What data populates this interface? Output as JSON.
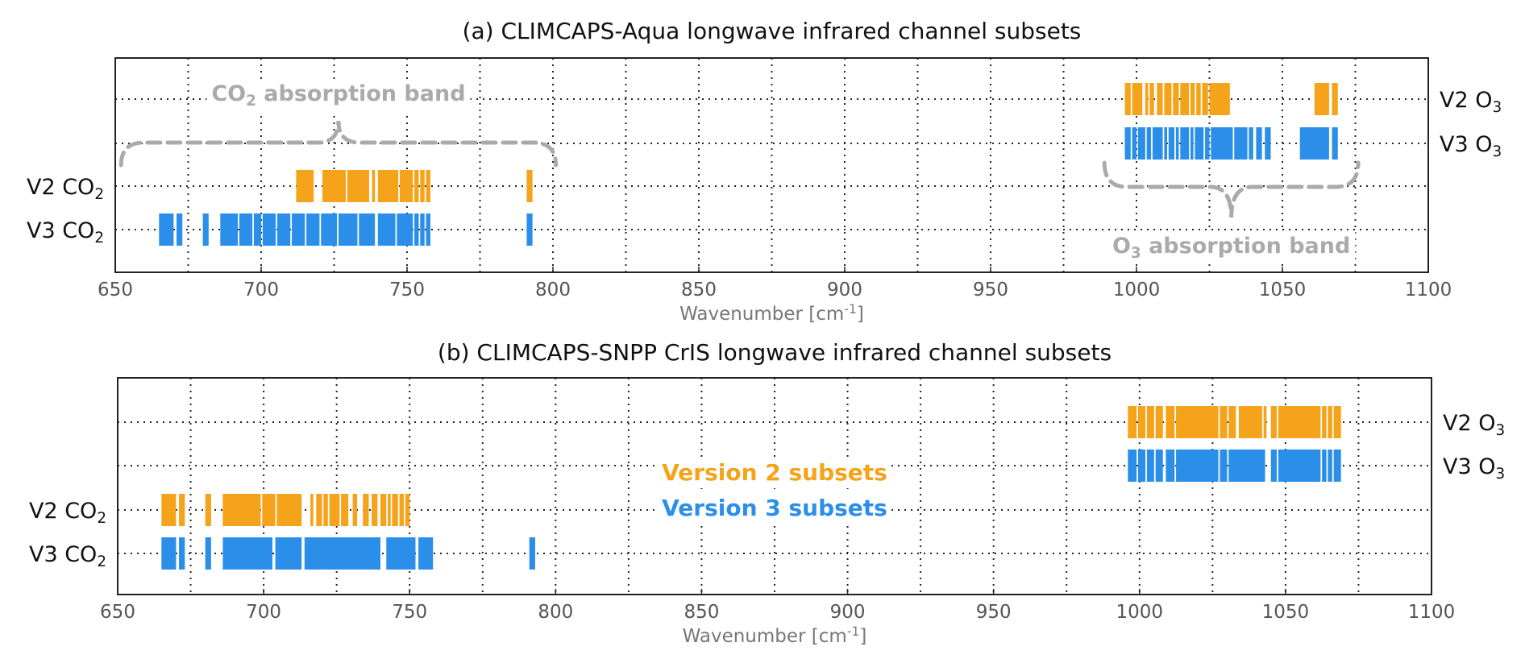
{
  "colors": {
    "v2": "#f5a31a",
    "v3": "#2b8fea",
    "band": "#aaaaaa",
    "grid": "#222222"
  },
  "chart_data": [
    {
      "type": "bar",
      "title": "(a) CLIMCAPS-Aqua longwave infrared channel subsets",
      "xlabel": "Wavenumber [cm",
      "xlabel_sup": "-1",
      "xlabel_end": "]",
      "xlim": [
        650,
        1100
      ],
      "xticks": [
        650,
        700,
        750,
        800,
        850,
        900,
        950,
        1000,
        1050,
        1100
      ],
      "grid": true,
      "rows": [
        {
          "id": "v2o3",
          "label": "V2 O",
          "sub": "3",
          "side": "right",
          "color": "#f5a31a",
          "segments": [
            [
              996,
              998
            ],
            [
              998.5,
              1002
            ],
            [
              1003,
              1004
            ],
            [
              1004.5,
              1006
            ],
            [
              1007,
              1009
            ],
            [
              1009.5,
              1012
            ],
            [
              1012.5,
              1014.5
            ],
            [
              1015,
              1018
            ],
            [
              1018.5,
              1020
            ],
            [
              1020.5,
              1022
            ],
            [
              1022.5,
              1024.5
            ],
            [
              1025,
              1032
            ],
            [
              1061,
              1066
            ],
            [
              1067,
              1069
            ]
          ]
        },
        {
          "id": "v3o3",
          "label": "V3 O",
          "sub": "3",
          "side": "right",
          "color": "#2b8fea",
          "segments": [
            [
              996,
              998
            ],
            [
              998.5,
              1000
            ],
            [
              1000.5,
              1003
            ],
            [
              1003.5,
              1005
            ],
            [
              1005.5,
              1009
            ],
            [
              1009.5,
              1010.5
            ],
            [
              1011,
              1013
            ],
            [
              1013.5,
              1014.5
            ],
            [
              1015,
              1018
            ],
            [
              1018.5,
              1019.5
            ],
            [
              1020,
              1023
            ],
            [
              1023.5,
              1025
            ],
            [
              1025.5,
              1033
            ],
            [
              1033.5,
              1038
            ],
            [
              1038.5,
              1040
            ],
            [
              1041,
              1043
            ],
            [
              1044,
              1046
            ],
            [
              1056,
              1066
            ],
            [
              1067,
              1069
            ]
          ]
        },
        {
          "id": "v2co2",
          "label": "V2 CO",
          "sub": "2",
          "side": "left",
          "color": "#f5a31a",
          "segments": [
            [
              712,
              718
            ],
            [
              721,
              729
            ],
            [
              729.5,
              737
            ],
            [
              738,
              739
            ],
            [
              740,
              747
            ],
            [
              747.5,
              752
            ],
            [
              752.5,
              754
            ],
            [
              754.5,
              756
            ],
            [
              756.5,
              758
            ],
            [
              791,
              793
            ]
          ]
        },
        {
          "id": "v3co2",
          "label": "V3 CO",
          "sub": "2",
          "side": "left",
          "color": "#2b8fea",
          "segments": [
            [
              665,
              670
            ],
            [
              671,
              673
            ],
            [
              680,
              682
            ],
            [
              686,
              692
            ],
            [
              692.5,
              697
            ],
            [
              697.5,
              700
            ],
            [
              700.5,
              705
            ],
            [
              705.5,
              710
            ],
            [
              710.5,
              715
            ],
            [
              715.5,
              720
            ],
            [
              720.5,
              726
            ],
            [
              726.5,
              733
            ],
            [
              733.5,
              739
            ],
            [
              740,
              746
            ],
            [
              746.5,
              752
            ],
            [
              752.5,
              754
            ],
            [
              754.5,
              756
            ],
            [
              756.5,
              758
            ],
            [
              791,
              793
            ]
          ]
        }
      ],
      "annotations": [
        {
          "id": "co2-band",
          "text": "CO",
          "sub": "2",
          "text_end": " absorption band",
          "range": [
            652,
            801
          ]
        },
        {
          "id": "o3-band",
          "text": "O",
          "sub": "3",
          "text_end": " absorption band",
          "range": [
            989,
            1076
          ]
        }
      ]
    },
    {
      "type": "bar",
      "title": "(b) CLIMCAPS-SNPP CrIS longwave infrared channel subsets",
      "xlabel": "Wavenumber [cm",
      "xlabel_sup": "-1",
      "xlabel_end": "]",
      "xlim": [
        650,
        1100
      ],
      "xticks": [
        650,
        700,
        750,
        800,
        850,
        900,
        950,
        1000,
        1050,
        1100
      ],
      "grid": true,
      "rows": [
        {
          "id": "v2o3",
          "label": "V2 O",
          "sub": "3",
          "side": "right",
          "color": "#f5a31a",
          "segments": [
            [
              996,
              999
            ],
            [
              999.5,
              1002
            ],
            [
              1002.5,
              1005
            ],
            [
              1005.5,
              1008
            ],
            [
              1009,
              1012
            ],
            [
              1012.5,
              1027
            ],
            [
              1027.5,
              1030
            ],
            [
              1030.5,
              1033
            ],
            [
              1034,
              1042
            ],
            [
              1042.5,
              1043.5
            ],
            [
              1045,
              1047
            ],
            [
              1047.5,
              1062
            ],
            [
              1062.5,
              1064
            ],
            [
              1064.5,
              1066
            ],
            [
              1066.5,
              1069
            ]
          ]
        },
        {
          "id": "v3o3",
          "label": "V3 O",
          "sub": "3",
          "side": "right",
          "color": "#2b8fea",
          "segments": [
            [
              996,
              999
            ],
            [
              999.5,
              1002
            ],
            [
              1002.5,
              1005
            ],
            [
              1005.5,
              1008
            ],
            [
              1009,
              1012
            ],
            [
              1012.5,
              1027
            ],
            [
              1027.5,
              1030
            ],
            [
              1030.5,
              1043
            ],
            [
              1045,
              1047
            ],
            [
              1047.5,
              1062
            ],
            [
              1062.5,
              1064
            ],
            [
              1064.5,
              1066
            ],
            [
              1066.5,
              1069
            ]
          ]
        },
        {
          "id": "v2co2",
          "label": "V2 CO",
          "sub": "2",
          "side": "left",
          "color": "#f5a31a",
          "segments": [
            [
              665,
              670
            ],
            [
              671,
              673
            ],
            [
              680,
              682
            ],
            [
              686,
              699
            ],
            [
              699.5,
              704
            ],
            [
              704.5,
              713
            ],
            [
              716,
              717
            ],
            [
              718,
              720
            ],
            [
              720.5,
              722
            ],
            [
              722.5,
              726
            ],
            [
              726.5,
              729
            ],
            [
              730.5,
              732
            ],
            [
              734,
              736
            ],
            [
              737,
              739
            ],
            [
              740,
              742
            ],
            [
              742.5,
              743.5
            ],
            [
              744,
              746
            ],
            [
              746.5,
              748
            ],
            [
              748.5,
              750
            ]
          ]
        },
        {
          "id": "v3co2",
          "label": "V3 CO",
          "sub": "2",
          "side": "left",
          "color": "#2b8fea",
          "segments": [
            [
              665,
              670
            ],
            [
              671,
              673
            ],
            [
              680,
              682
            ],
            [
              686,
              703
            ],
            [
              704,
              713
            ],
            [
              714,
              740
            ],
            [
              742,
              752
            ],
            [
              753,
              758
            ],
            [
              791,
              793
            ]
          ]
        }
      ],
      "legend": [
        {
          "id": "legend-v2",
          "text": "Version 2 subsets",
          "color": "#f5a31a"
        },
        {
          "id": "legend-v3",
          "text": "Version 3 subsets",
          "color": "#2b8fea"
        }
      ]
    }
  ]
}
